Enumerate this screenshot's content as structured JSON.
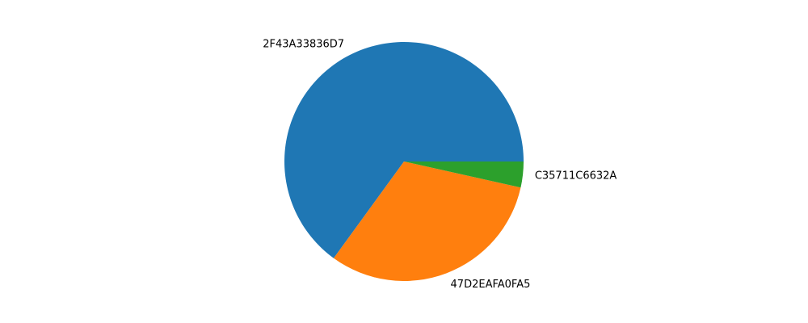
{
  "chart_data": {
    "type": "pie",
    "labels": [
      "2F43A33836D7",
      "47D2EAFA0FA5",
      "C35711C6632A"
    ],
    "values": [
      65.0,
      31.5,
      3.5
    ],
    "colors": [
      "#1f77b4",
      "#ff7f0e",
      "#2ca02c"
    ],
    "start_angle_deg": 0,
    "direction": "counterclockwise",
    "legend": "none",
    "title": ""
  }
}
